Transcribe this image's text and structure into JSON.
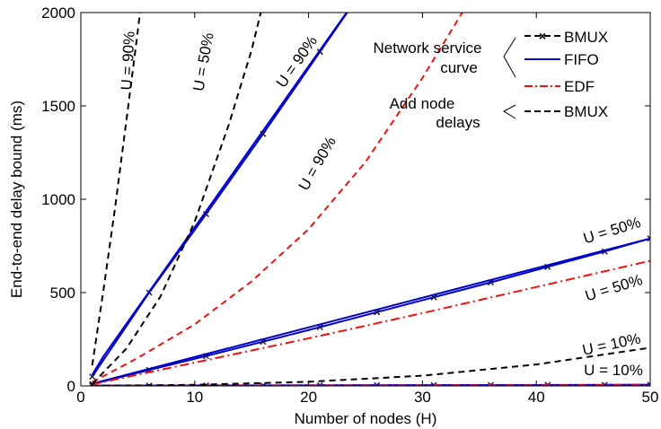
{
  "chart_data": {
    "type": "line",
    "title": "",
    "xlabel": "Number of nodes (H)",
    "ylabel": "End-to-end delay bound (ms)",
    "xlim": [
      0,
      50
    ],
    "ylim": [
      0,
      2000
    ],
    "xticks": [
      0,
      10,
      20,
      30,
      40,
      50
    ],
    "yticks": [
      0,
      500,
      1000,
      1500,
      2000
    ],
    "xtick_labels": [
      "0",
      "10",
      "20",
      "30",
      "40",
      "50"
    ],
    "ytick_labels": [
      "0",
      "500",
      "1000",
      "1500",
      "2000"
    ],
    "grid": false,
    "legend": {
      "placement": "top-right",
      "group_labels": [
        {
          "lines": [
            "Network service",
            "curve"
          ]
        },
        {
          "lines": [
            "Add node",
            "delays"
          ]
        }
      ],
      "entries": [
        {
          "label": "BMUX",
          "color": "#000000",
          "style": "dashed-x"
        },
        {
          "label": "FIFO",
          "color": "#0000cc",
          "style": "solid"
        },
        {
          "label": "EDF",
          "color": "#ee1111",
          "style": "dashdot"
        },
        {
          "label": "BMUX",
          "color": "#000000",
          "style": "dashed"
        }
      ]
    },
    "series": [
      {
        "method": "service-curve",
        "scheduler": "BMUX",
        "utilization": "90%",
        "color": "#0000cc",
        "style": "solid",
        "markers": true,
        "x": [
          1,
          6,
          11,
          16,
          21,
          26
        ],
        "y": [
          50,
          500,
          920,
          1350,
          1790,
          2230
        ]
      },
      {
        "method": "service-curve",
        "scheduler": "BMUX",
        "utilization": "50%",
        "color": "#0000cc",
        "style": "solid",
        "markers": true,
        "x": [
          1,
          6,
          11,
          16,
          21,
          26,
          31,
          36,
          41,
          46,
          50
        ],
        "y": [
          10,
          85,
          160,
          237,
          315,
          395,
          475,
          555,
          638,
          720,
          790
        ]
      },
      {
        "method": "service-curve",
        "scheduler": "BMUX",
        "utilization": "10%",
        "color": "#0000cc",
        "style": "solid",
        "markers": true,
        "x": [
          1,
          6,
          11,
          16,
          21,
          26,
          31,
          36,
          41,
          46,
          50
        ],
        "y": [
          1,
          1.5,
          2,
          2.5,
          3,
          3.5,
          4,
          4.5,
          5,
          5.5,
          6
        ]
      },
      {
        "method": "service-curve",
        "scheduler": "FIFO",
        "utilization": "90%",
        "color": "#0000cc",
        "style": "solid",
        "x": [
          1,
          2,
          26
        ],
        "y": [
          60,
          160,
          2230
        ]
      },
      {
        "method": "service-curve",
        "scheduler": "FIFO",
        "utilization": "50%",
        "color": "#0000cc",
        "style": "solid",
        "x": [
          1,
          50
        ],
        "y": [
          12,
          790
        ]
      },
      {
        "method": "service-curve",
        "scheduler": "FIFO",
        "utilization": "10%",
        "color": "#0000cc",
        "style": "solid",
        "x": [
          1,
          50
        ],
        "y": [
          2,
          6
        ]
      },
      {
        "method": "service-curve",
        "scheduler": "EDF",
        "utilization": "90%",
        "color": "#ee1111",
        "style": "dashed",
        "x": [
          1,
          5,
          10,
          15,
          20,
          25,
          30,
          35
        ],
        "y": [
          20,
          150,
          330,
          560,
          840,
          1200,
          1650,
          2150
        ]
      },
      {
        "method": "service-curve",
        "scheduler": "EDF",
        "utilization": "50%",
        "color": "#ee1111",
        "style": "dashdot",
        "x": [
          1,
          10,
          20,
          30,
          40,
          50
        ],
        "y": [
          8,
          125,
          255,
          390,
          530,
          670
        ]
      },
      {
        "method": "service-curve",
        "scheduler": "EDF",
        "utilization": "10%",
        "color": "#ee1111",
        "style": "dashdot",
        "x": [
          1,
          50
        ],
        "y": [
          1,
          4
        ]
      },
      {
        "method": "add-node-delays",
        "scheduler": "BMUX",
        "utilization": "90%",
        "color": "#000000",
        "style": "dashed",
        "x": [
          1,
          2,
          3,
          4,
          5,
          6
        ],
        "y": [
          110,
          520,
          950,
          1420,
          1900,
          2400
        ]
      },
      {
        "method": "add-node-delays",
        "scheduler": "BMUX",
        "utilization": "50%",
        "color": "#000000",
        "style": "dashed",
        "x": [
          1,
          4,
          7,
          10,
          13,
          15,
          16
        ],
        "y": [
          10,
          200,
          480,
          880,
          1400,
          1800,
          2050
        ]
      },
      {
        "method": "add-node-delays",
        "scheduler": "BMUX",
        "utilization": "10%",
        "color": "#000000",
        "style": "dashed",
        "x": [
          1,
          10,
          20,
          30,
          40,
          50
        ],
        "y": [
          1,
          6,
          22,
          55,
          115,
          205
        ]
      }
    ],
    "annotations": [
      {
        "text": "U = 90%"
      },
      {
        "text": "U = 50%"
      },
      {
        "text": "U = 90%"
      },
      {
        "text": "U = 90%"
      },
      {
        "text": "U = 50%"
      },
      {
        "text": "U = 50%"
      },
      {
        "text": "U = 10%"
      },
      {
        "text": "U = 10%"
      }
    ]
  }
}
